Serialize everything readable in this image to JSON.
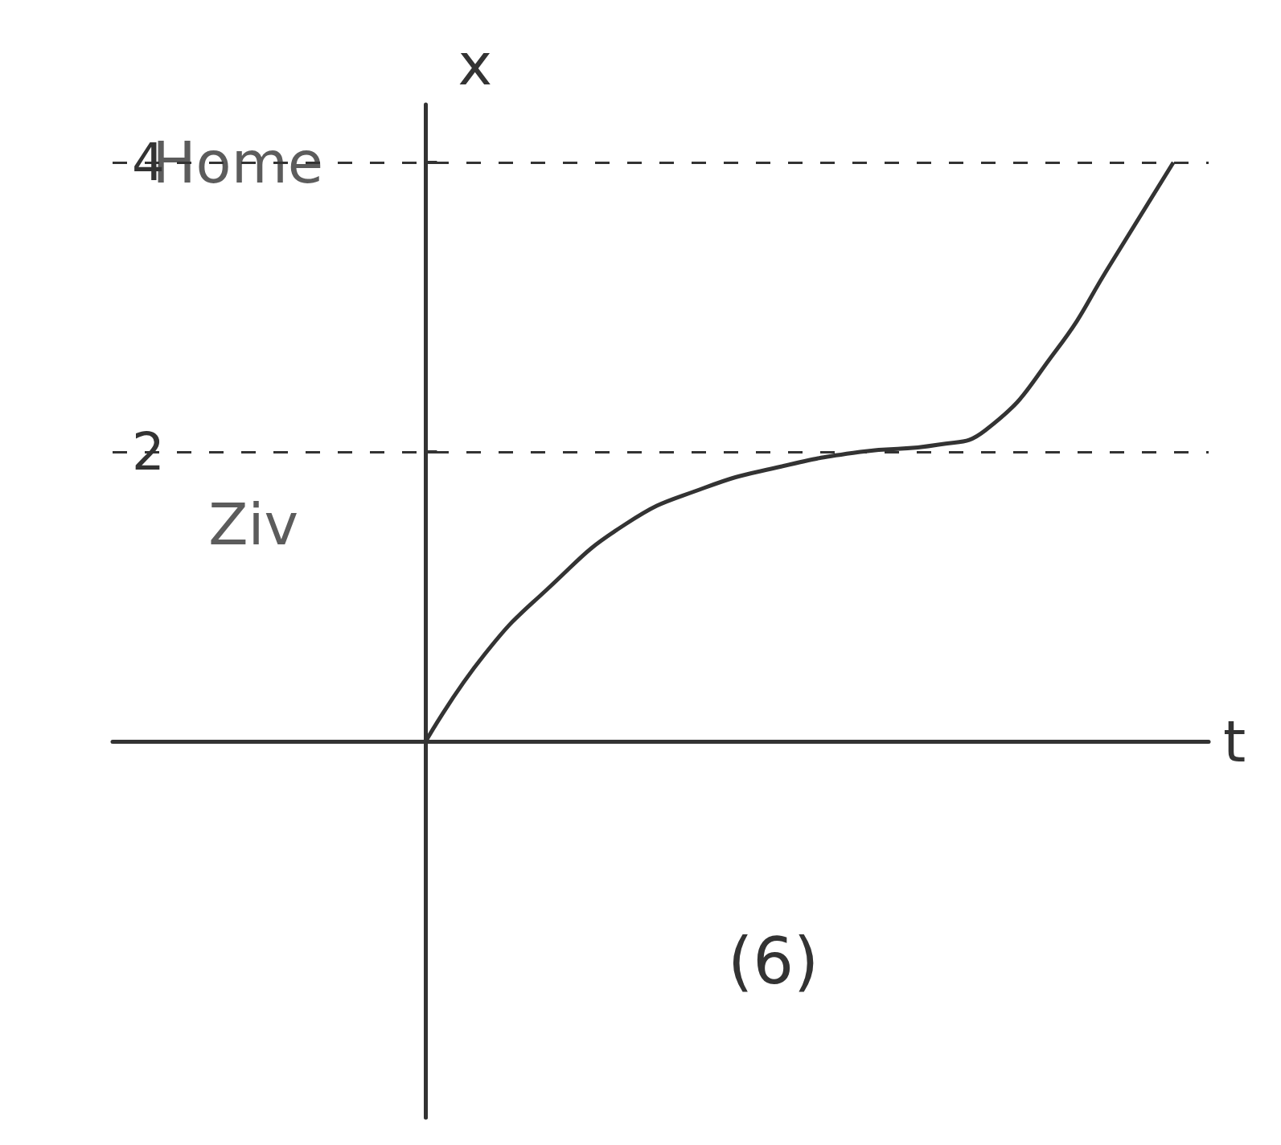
{
  "chart_data": {
    "type": "line",
    "title": "(6)",
    "x_label": "t",
    "y_label": "x",
    "x": [
      0,
      0.75,
      1.55,
      2.55,
      3.55,
      4.55,
      5.55,
      6.55,
      7.15,
      8.05,
      8.75,
      9.55
    ],
    "values": [
      0,
      0.6,
      1.05,
      1.5,
      1.75,
      1.9,
      2.0,
      2.05,
      2.15,
      2.7,
      3.3,
      4.0
    ],
    "color": "#333333",
    "xlim": [
      -4,
      10
    ],
    "ylim": [
      -2.6,
      4.4
    ],
    "yticks": [
      2,
      4
    ],
    "grid": true,
    "tick_labels": "y",
    "line_style": "solid",
    "marker": "none",
    "annotations": [
      {
        "text": "Home",
        "x": -2.4,
        "y": 4.0
      },
      {
        "text": "Ziv",
        "x": -2.2,
        "y": 1.5
      }
    ]
  }
}
